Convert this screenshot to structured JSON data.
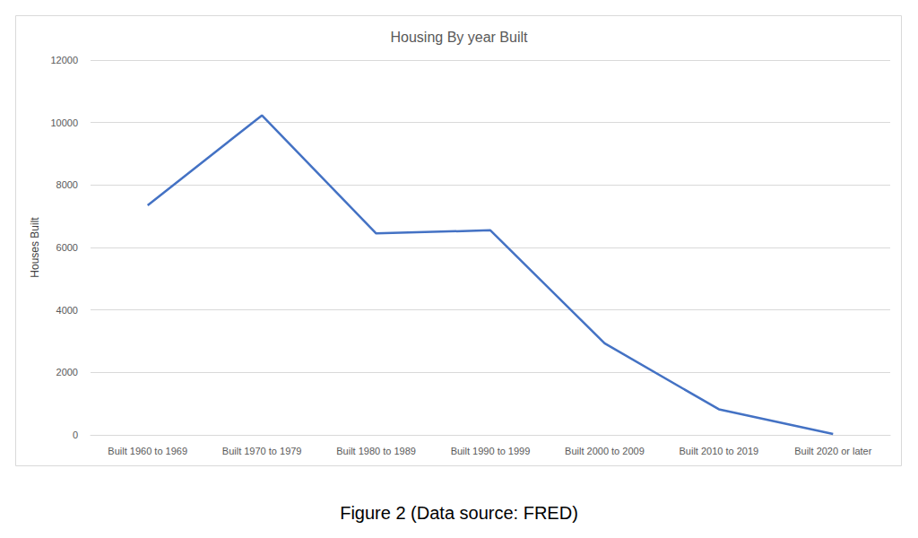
{
  "chart_data": {
    "type": "line",
    "title": "Housing By year Built",
    "y_label": "Houses Built",
    "caption": "Figure 2 (Data source: FRED)",
    "categories": [
      "Built 1960 to 1969",
      "Built 1970 to 1979",
      "Built 1980 to 1989",
      "Built 1990 to 1999",
      "Built 2000 to 2009",
      "Built 2010 to 2019",
      "Built 2020 or later"
    ],
    "values": [
      7350,
      10230,
      6450,
      6550,
      2930,
      820,
      30
    ],
    "color": "#4472c4",
    "ylim": [
      0,
      12000
    ],
    "yticks": [
      0,
      2000,
      4000,
      6000,
      8000,
      10000,
      12000
    ],
    "grid": true
  }
}
